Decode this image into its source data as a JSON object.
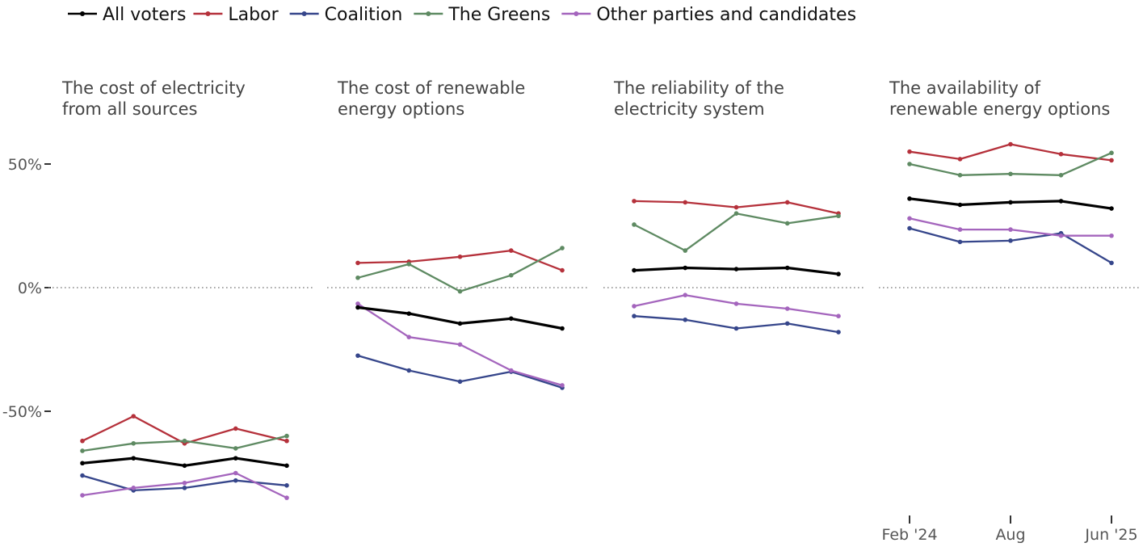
{
  "chart_data": {
    "type": "line",
    "ylim": [
      -0.9,
      0.6
    ],
    "zero_line": "dotted",
    "grid": false,
    "legend_position": "top-left",
    "y_ticks": [
      {
        "value": 0.5,
        "label": "50%"
      },
      {
        "value": 0,
        "label": "0%"
      },
      {
        "value": -0.5,
        "label": "-50%"
      }
    ],
    "x": [
      "Feb '24",
      "",
      "Aug",
      "",
      "Jun '25"
    ],
    "x_ticks": [
      {
        "index": 0,
        "label": "Feb '24"
      },
      {
        "index": 2,
        "label": "Aug"
      },
      {
        "index": 4,
        "label": "Jun '25"
      }
    ],
    "series_styles": [
      {
        "name": "All voters",
        "color": "#000000"
      },
      {
        "name": "Labor",
        "color": "#b5313b"
      },
      {
        "name": "Coalition",
        "color": "#36468b"
      },
      {
        "name": "The Greens",
        "color": "#5e8a62"
      },
      {
        "name": "Other parties and candidates",
        "color": "#a465bd"
      }
    ],
    "panels": [
      {
        "title": [
          "The cost of electricity",
          "from all sources"
        ],
        "series": [
          {
            "name": "All voters",
            "values": [
              -0.71,
              -0.69,
              -0.72,
              -0.69,
              -0.72
            ]
          },
          {
            "name": "Labor",
            "values": [
              -0.62,
              -0.52,
              -0.63,
              -0.57,
              -0.62
            ]
          },
          {
            "name": "Coalition",
            "values": [
              -0.76,
              -0.82,
              -0.81,
              -0.78,
              -0.8
            ]
          },
          {
            "name": "The Greens",
            "values": [
              -0.66,
              -0.63,
              -0.62,
              -0.65,
              -0.6
            ]
          },
          {
            "name": "Other parties and candidates",
            "values": [
              -0.84,
              -0.81,
              -0.79,
              -0.75,
              -0.85
            ]
          }
        ]
      },
      {
        "title": [
          "The cost of renewable",
          "energy options"
        ],
        "series": [
          {
            "name": "All voters",
            "values": [
              -0.08,
              -0.105,
              -0.145,
              -0.125,
              -0.165
            ]
          },
          {
            "name": "Labor",
            "values": [
              0.1,
              0.105,
              0.125,
              0.15,
              0.07
            ]
          },
          {
            "name": "Coalition",
            "values": [
              -0.275,
              -0.335,
              -0.38,
              -0.34,
              -0.405
            ]
          },
          {
            "name": "The Greens",
            "values": [
              0.04,
              0.095,
              -0.015,
              0.05,
              0.16
            ]
          },
          {
            "name": "Other parties and candidates",
            "values": [
              -0.065,
              -0.2,
              -0.23,
              -0.335,
              -0.395
            ]
          }
        ]
      },
      {
        "title": [
          "The reliability of the",
          "electricity system"
        ],
        "series": [
          {
            "name": "All voters",
            "values": [
              0.07,
              0.08,
              0.075,
              0.08,
              0.055
            ]
          },
          {
            "name": "Labor",
            "values": [
              0.35,
              0.345,
              0.325,
              0.345,
              0.3
            ]
          },
          {
            "name": "Coalition",
            "values": [
              -0.115,
              -0.13,
              -0.165,
              -0.145,
              -0.18
            ]
          },
          {
            "name": "The Greens",
            "values": [
              0.255,
              0.15,
              0.3,
              0.26,
              0.29
            ]
          },
          {
            "name": "Other parties and candidates",
            "values": [
              -0.075,
              -0.03,
              -0.065,
              -0.085,
              -0.115
            ]
          }
        ]
      },
      {
        "title": [
          "The availability of",
          "renewable energy options"
        ],
        "series": [
          {
            "name": "All voters",
            "values": [
              0.36,
              0.335,
              0.345,
              0.35,
              0.32
            ]
          },
          {
            "name": "Labor",
            "values": [
              0.55,
              0.52,
              0.58,
              0.54,
              0.515
            ]
          },
          {
            "name": "Coalition",
            "values": [
              0.24,
              0.185,
              0.19,
              0.22,
              0.1
            ]
          },
          {
            "name": "The Greens",
            "values": [
              0.5,
              0.455,
              0.46,
              0.455,
              0.545
            ]
          },
          {
            "name": "Other parties and candidates",
            "values": [
              0.28,
              0.235,
              0.235,
              0.21,
              0.21
            ]
          }
        ]
      }
    ]
  }
}
